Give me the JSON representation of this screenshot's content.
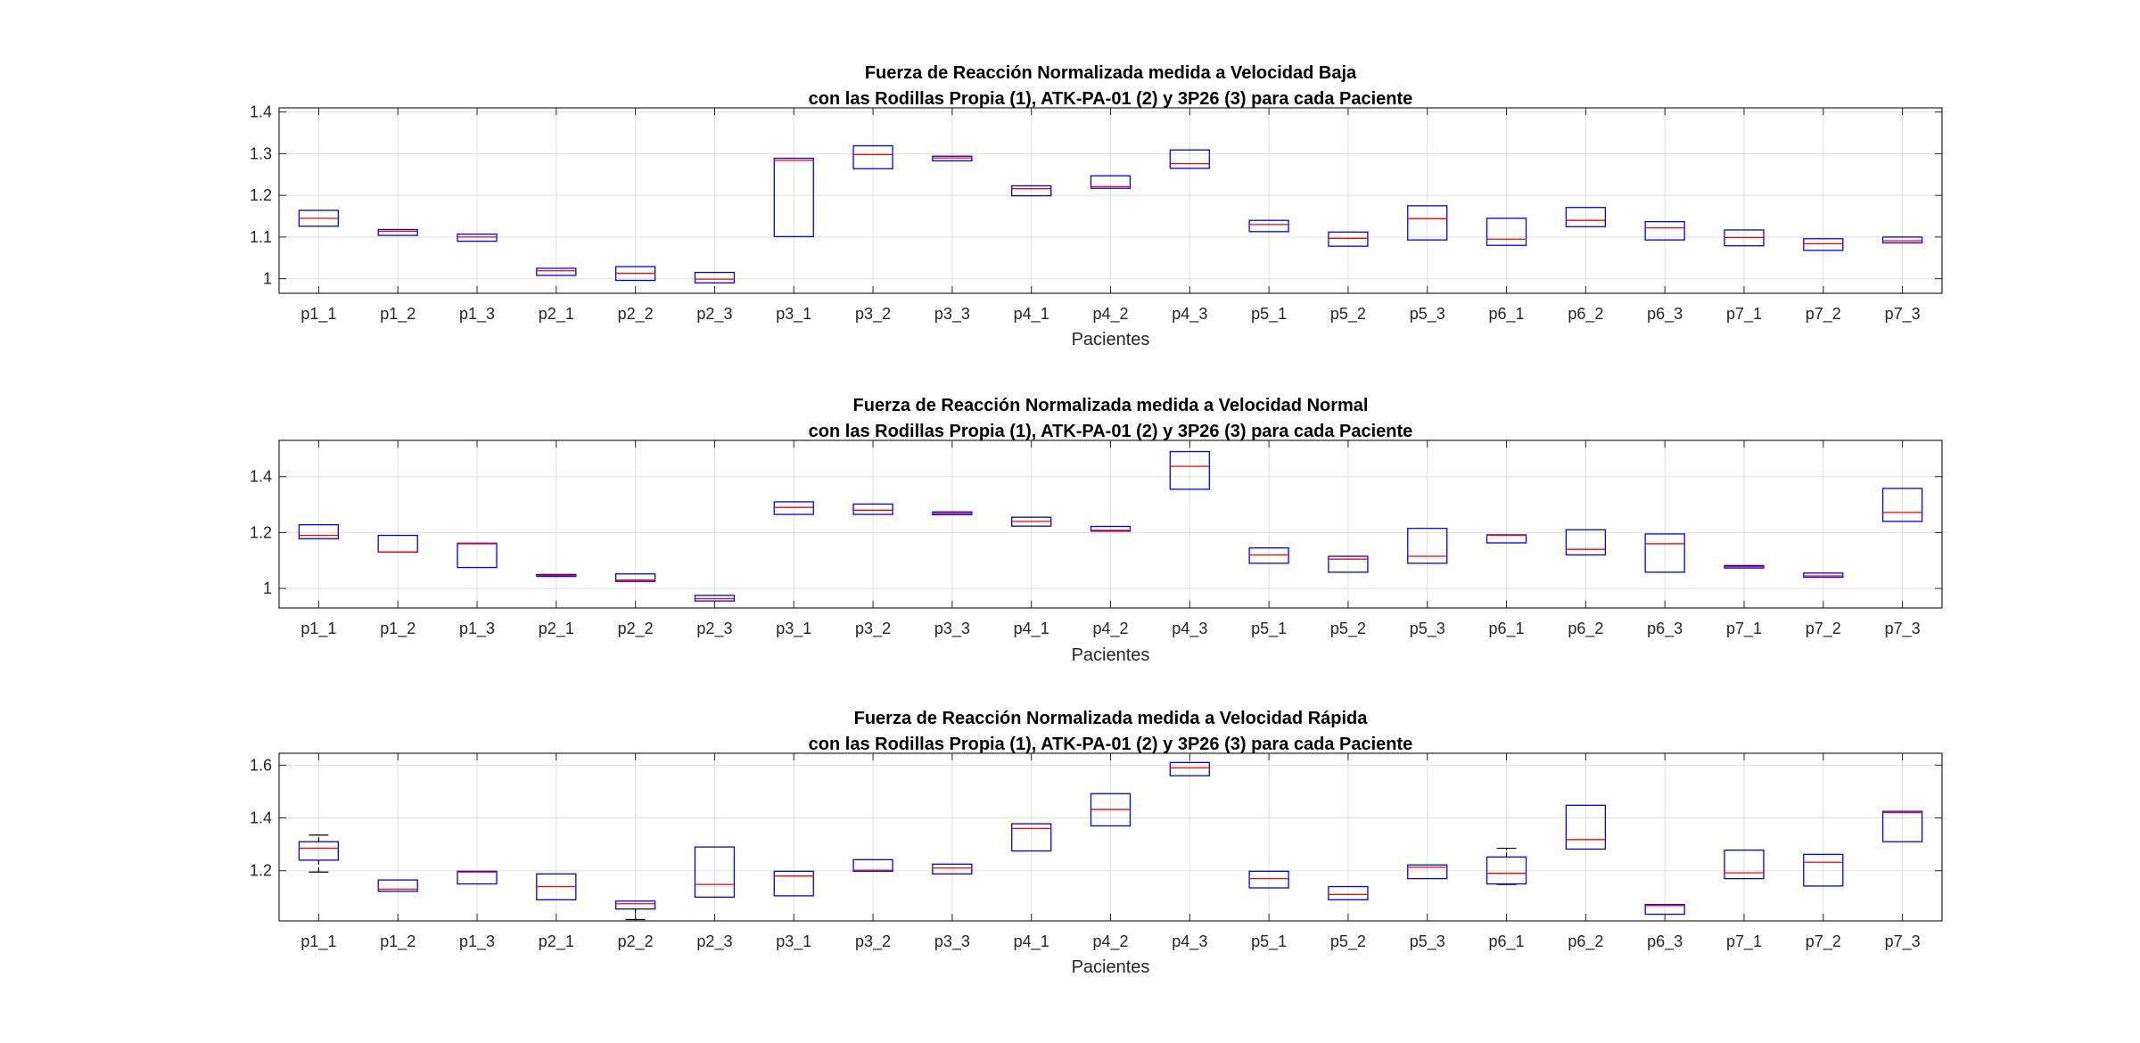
{
  "chart_data": [
    {
      "type": "boxplot",
      "title": "Fuerza de Reacción Normalizada medida a Velocidad Baja",
      "subtitle": "con las Rodillas Propia (1), ATK-PA-01 (2) y 3P26 (3) para cada Paciente",
      "xlabel": "Pacientes",
      "ylabel": "",
      "ylim": [
        0.965,
        1.41
      ],
      "yticks": [
        1,
        1.1,
        1.2,
        1.3,
        1.4
      ],
      "ytick_labels": [
        "1",
        "1.1",
        "1.2",
        "1.3",
        "1.4"
      ],
      "grid": true,
      "categories": [
        "p1_1",
        "p1_2",
        "p1_3",
        "p2_1",
        "p2_2",
        "p2_3",
        "p3_1",
        "p3_2",
        "p3_3",
        "p4_1",
        "p4_2",
        "p4_3",
        "p5_1",
        "p5_2",
        "p5_3",
        "p6_1",
        "p6_2",
        "p6_3",
        "p7_1",
        "p7_2",
        "p7_3"
      ],
      "boxes": [
        {
          "q1": 1.126,
          "median": 1.145,
          "q3": 1.164,
          "whisker_low": 1.126,
          "whisker_high": 1.164
        },
        {
          "q1": 1.104,
          "median": 1.114,
          "q3": 1.118,
          "whisker_low": 1.104,
          "whisker_high": 1.118
        },
        {
          "q1": 1.09,
          "median": 1.1,
          "q3": 1.107,
          "whisker_low": 1.09,
          "whisker_high": 1.107
        },
        {
          "q1": 1.008,
          "median": 1.019,
          "q3": 1.025,
          "whisker_low": 1.008,
          "whisker_high": 1.025
        },
        {
          "q1": 0.996,
          "median": 1.013,
          "q3": 1.029,
          "whisker_low": 0.996,
          "whisker_high": 1.029
        },
        {
          "q1": 0.99,
          "median": 0.999,
          "q3": 1.015,
          "whisker_low": 0.99,
          "whisker_high": 1.015
        },
        {
          "q1": 1.101,
          "median": 1.284,
          "q3": 1.289,
          "whisker_low": 1.101,
          "whisker_high": 1.289
        },
        {
          "q1": 1.264,
          "median": 1.298,
          "q3": 1.319,
          "whisker_low": 1.264,
          "whisker_high": 1.319
        },
        {
          "q1": 1.283,
          "median": 1.29,
          "q3": 1.294,
          "whisker_low": 1.283,
          "whisker_high": 1.294
        },
        {
          "q1": 1.199,
          "median": 1.216,
          "q3": 1.223,
          "whisker_low": 1.199,
          "whisker_high": 1.223
        },
        {
          "q1": 1.217,
          "median": 1.221,
          "q3": 1.247,
          "whisker_low": 1.217,
          "whisker_high": 1.247
        },
        {
          "q1": 1.265,
          "median": 1.276,
          "q3": 1.309,
          "whisker_low": 1.265,
          "whisker_high": 1.309
        },
        {
          "q1": 1.113,
          "median": 1.13,
          "q3": 1.14,
          "whisker_low": 1.113,
          "whisker_high": 1.14
        },
        {
          "q1": 1.078,
          "median": 1.097,
          "q3": 1.112,
          "whisker_low": 1.078,
          "whisker_high": 1.112
        },
        {
          "q1": 1.093,
          "median": 1.144,
          "q3": 1.175,
          "whisker_low": 1.093,
          "whisker_high": 1.175
        },
        {
          "q1": 1.08,
          "median": 1.095,
          "q3": 1.145,
          "whisker_low": 1.08,
          "whisker_high": 1.145
        },
        {
          "q1": 1.125,
          "median": 1.14,
          "q3": 1.171,
          "whisker_low": 1.125,
          "whisker_high": 1.171
        },
        {
          "q1": 1.093,
          "median": 1.122,
          "q3": 1.137,
          "whisker_low": 1.093,
          "whisker_high": 1.137
        },
        {
          "q1": 1.079,
          "median": 1.099,
          "q3": 1.117,
          "whisker_low": 1.079,
          "whisker_high": 1.117
        },
        {
          "q1": 1.068,
          "median": 1.084,
          "q3": 1.096,
          "whisker_low": 1.068,
          "whisker_high": 1.096
        },
        {
          "q1": 1.086,
          "median": 1.091,
          "q3": 1.1,
          "whisker_low": 1.086,
          "whisker_high": 1.1
        }
      ]
    },
    {
      "type": "boxplot",
      "title": "Fuerza de Reacción Normalizada medida a Velocidad Normal",
      "subtitle": "con las Rodillas Propia (1), ATK-PA-01 (2) y 3P26 (3) para cada Paciente",
      "xlabel": "Pacientes",
      "ylabel": "",
      "ylim": [
        0.93,
        1.53
      ],
      "yticks": [
        1,
        1.2,
        1.4
      ],
      "ytick_labels": [
        "1",
        "1.2",
        "1.4"
      ],
      "grid": true,
      "categories": [
        "p1_1",
        "p1_2",
        "p1_3",
        "p2_1",
        "p2_2",
        "p2_3",
        "p3_1",
        "p3_2",
        "p3_3",
        "p4_1",
        "p4_2",
        "p4_3",
        "p5_1",
        "p5_2",
        "p5_3",
        "p6_1",
        "p6_2",
        "p6_3",
        "p7_1",
        "p7_2",
        "p7_3"
      ],
      "boxes": [
        {
          "q1": 1.178,
          "median": 1.19,
          "q3": 1.228,
          "whisker_low": 1.178,
          "whisker_high": 1.228
        },
        {
          "q1": 1.13,
          "median": 1.13,
          "q3": 1.19,
          "whisker_low": 1.13,
          "whisker_high": 1.19
        },
        {
          "q1": 1.075,
          "median": 1.16,
          "q3": 1.162,
          "whisker_low": 1.075,
          "whisker_high": 1.162
        },
        {
          "q1": 1.043,
          "median": 1.047,
          "q3": 1.05,
          "whisker_low": 1.043,
          "whisker_high": 1.05
        },
        {
          "q1": 1.025,
          "median": 1.03,
          "q3": 1.052,
          "whisker_low": 1.025,
          "whisker_high": 1.052
        },
        {
          "q1": 0.955,
          "median": 0.963,
          "q3": 0.975,
          "whisker_low": 0.955,
          "whisker_high": 0.975
        },
        {
          "q1": 1.265,
          "median": 1.29,
          "q3": 1.31,
          "whisker_low": 1.265,
          "whisker_high": 1.31
        },
        {
          "q1": 1.265,
          "median": 1.28,
          "q3": 1.302,
          "whisker_low": 1.265,
          "whisker_high": 1.302
        },
        {
          "q1": 1.264,
          "median": 1.269,
          "q3": 1.274,
          "whisker_low": 1.264,
          "whisker_high": 1.274
        },
        {
          "q1": 1.223,
          "median": 1.24,
          "q3": 1.255,
          "whisker_low": 1.223,
          "whisker_high": 1.255
        },
        {
          "q1": 1.205,
          "median": 1.208,
          "q3": 1.222,
          "whisker_low": 1.205,
          "whisker_high": 1.222
        },
        {
          "q1": 1.355,
          "median": 1.437,
          "q3": 1.49,
          "whisker_low": 1.355,
          "whisker_high": 1.49
        },
        {
          "q1": 1.09,
          "median": 1.12,
          "q3": 1.145,
          "whisker_low": 1.09,
          "whisker_high": 1.145
        },
        {
          "q1": 1.058,
          "median": 1.105,
          "q3": 1.115,
          "whisker_low": 1.058,
          "whisker_high": 1.115
        },
        {
          "q1": 1.09,
          "median": 1.115,
          "q3": 1.215,
          "whisker_low": 1.09,
          "whisker_high": 1.215
        },
        {
          "q1": 1.163,
          "median": 1.19,
          "q3": 1.192,
          "whisker_low": 1.163,
          "whisker_high": 1.192
        },
        {
          "q1": 1.12,
          "median": 1.14,
          "q3": 1.21,
          "whisker_low": 1.12,
          "whisker_high": 1.21
        },
        {
          "q1": 1.058,
          "median": 1.16,
          "q3": 1.195,
          "whisker_low": 1.058,
          "whisker_high": 1.195
        },
        {
          "q1": 1.073,
          "median": 1.078,
          "q3": 1.082,
          "whisker_low": 1.073,
          "whisker_high": 1.082
        },
        {
          "q1": 1.04,
          "median": 1.045,
          "q3": 1.055,
          "whisker_low": 1.04,
          "whisker_high": 1.055
        },
        {
          "q1": 1.24,
          "median": 1.272,
          "q3": 1.358,
          "whisker_low": 1.24,
          "whisker_high": 1.358
        }
      ]
    },
    {
      "type": "boxplot",
      "title": "Fuerza de Reacción Normalizada medida a Velocidad Rápida",
      "subtitle": "con las Rodillas Propia (1), ATK-PA-01 (2) y 3P26 (3) para cada Paciente",
      "xlabel": "Pacientes",
      "ylabel": "",
      "ylim": [
        1.01,
        1.645
      ],
      "yticks": [
        1.2,
        1.4,
        1.6
      ],
      "ytick_labels": [
        "1.2",
        "1.4",
        "1.6"
      ],
      "grid": true,
      "categories": [
        "p1_1",
        "p1_2",
        "p1_3",
        "p2_1",
        "p2_2",
        "p2_3",
        "p3_1",
        "p3_2",
        "p3_3",
        "p4_1",
        "p4_2",
        "p4_3",
        "p5_1",
        "p5_2",
        "p5_3",
        "p6_1",
        "p6_2",
        "p6_3",
        "p7_1",
        "p7_2",
        "p7_3"
      ],
      "boxes": [
        {
          "q1": 1.24,
          "median": 1.285,
          "q3": 1.31,
          "whisker_low": 1.195,
          "whisker_high": 1.335
        },
        {
          "q1": 1.122,
          "median": 1.13,
          "q3": 1.165,
          "whisker_low": 1.122,
          "whisker_high": 1.165
        },
        {
          "q1": 1.15,
          "median": 1.195,
          "q3": 1.198,
          "whisker_low": 1.15,
          "whisker_high": 1.198
        },
        {
          "q1": 1.09,
          "median": 1.14,
          "q3": 1.188,
          "whisker_low": 1.09,
          "whisker_high": 1.188
        },
        {
          "q1": 1.055,
          "median": 1.075,
          "q3": 1.085,
          "whisker_low": 1.015,
          "whisker_high": 1.085
        },
        {
          "q1": 1.1,
          "median": 1.148,
          "q3": 1.29,
          "whisker_low": 1.1,
          "whisker_high": 1.29
        },
        {
          "q1": 1.105,
          "median": 1.18,
          "q3": 1.198,
          "whisker_low": 1.105,
          "whisker_high": 1.198
        },
        {
          "q1": 1.198,
          "median": 1.202,
          "q3": 1.242,
          "whisker_low": 1.198,
          "whisker_high": 1.242
        },
        {
          "q1": 1.188,
          "median": 1.21,
          "q3": 1.225,
          "whisker_low": 1.188,
          "whisker_high": 1.225
        },
        {
          "q1": 1.275,
          "median": 1.36,
          "q3": 1.378,
          "whisker_low": 1.275,
          "whisker_high": 1.378
        },
        {
          "q1": 1.37,
          "median": 1.432,
          "q3": 1.492,
          "whisker_low": 1.37,
          "whisker_high": 1.492
        },
        {
          "q1": 1.56,
          "median": 1.59,
          "q3": 1.61,
          "whisker_low": 1.56,
          "whisker_high": 1.61
        },
        {
          "q1": 1.135,
          "median": 1.17,
          "q3": 1.198,
          "whisker_low": 1.135,
          "whisker_high": 1.198
        },
        {
          "q1": 1.09,
          "median": 1.11,
          "q3": 1.14,
          "whisker_low": 1.09,
          "whisker_high": 1.14
        },
        {
          "q1": 1.17,
          "median": 1.213,
          "q3": 1.222,
          "whisker_low": 1.17,
          "whisker_high": 1.222
        },
        {
          "q1": 1.15,
          "median": 1.19,
          "q3": 1.252,
          "whisker_low": 1.148,
          "whisker_high": 1.285
        },
        {
          "q1": 1.282,
          "median": 1.318,
          "q3": 1.448,
          "whisker_low": 1.282,
          "whisker_high": 1.448
        },
        {
          "q1": 1.035,
          "median": 1.068,
          "q3": 1.072,
          "whisker_low": 1.035,
          "whisker_high": 1.072
        },
        {
          "q1": 1.17,
          "median": 1.192,
          "q3": 1.278,
          "whisker_low": 1.17,
          "whisker_high": 1.278
        },
        {
          "q1": 1.142,
          "median": 1.232,
          "q3": 1.262,
          "whisker_low": 1.142,
          "whisker_high": 1.262
        },
        {
          "q1": 1.31,
          "median": 1.42,
          "q3": 1.425,
          "whisker_low": 1.31,
          "whisker_high": 1.425
        }
      ]
    }
  ]
}
